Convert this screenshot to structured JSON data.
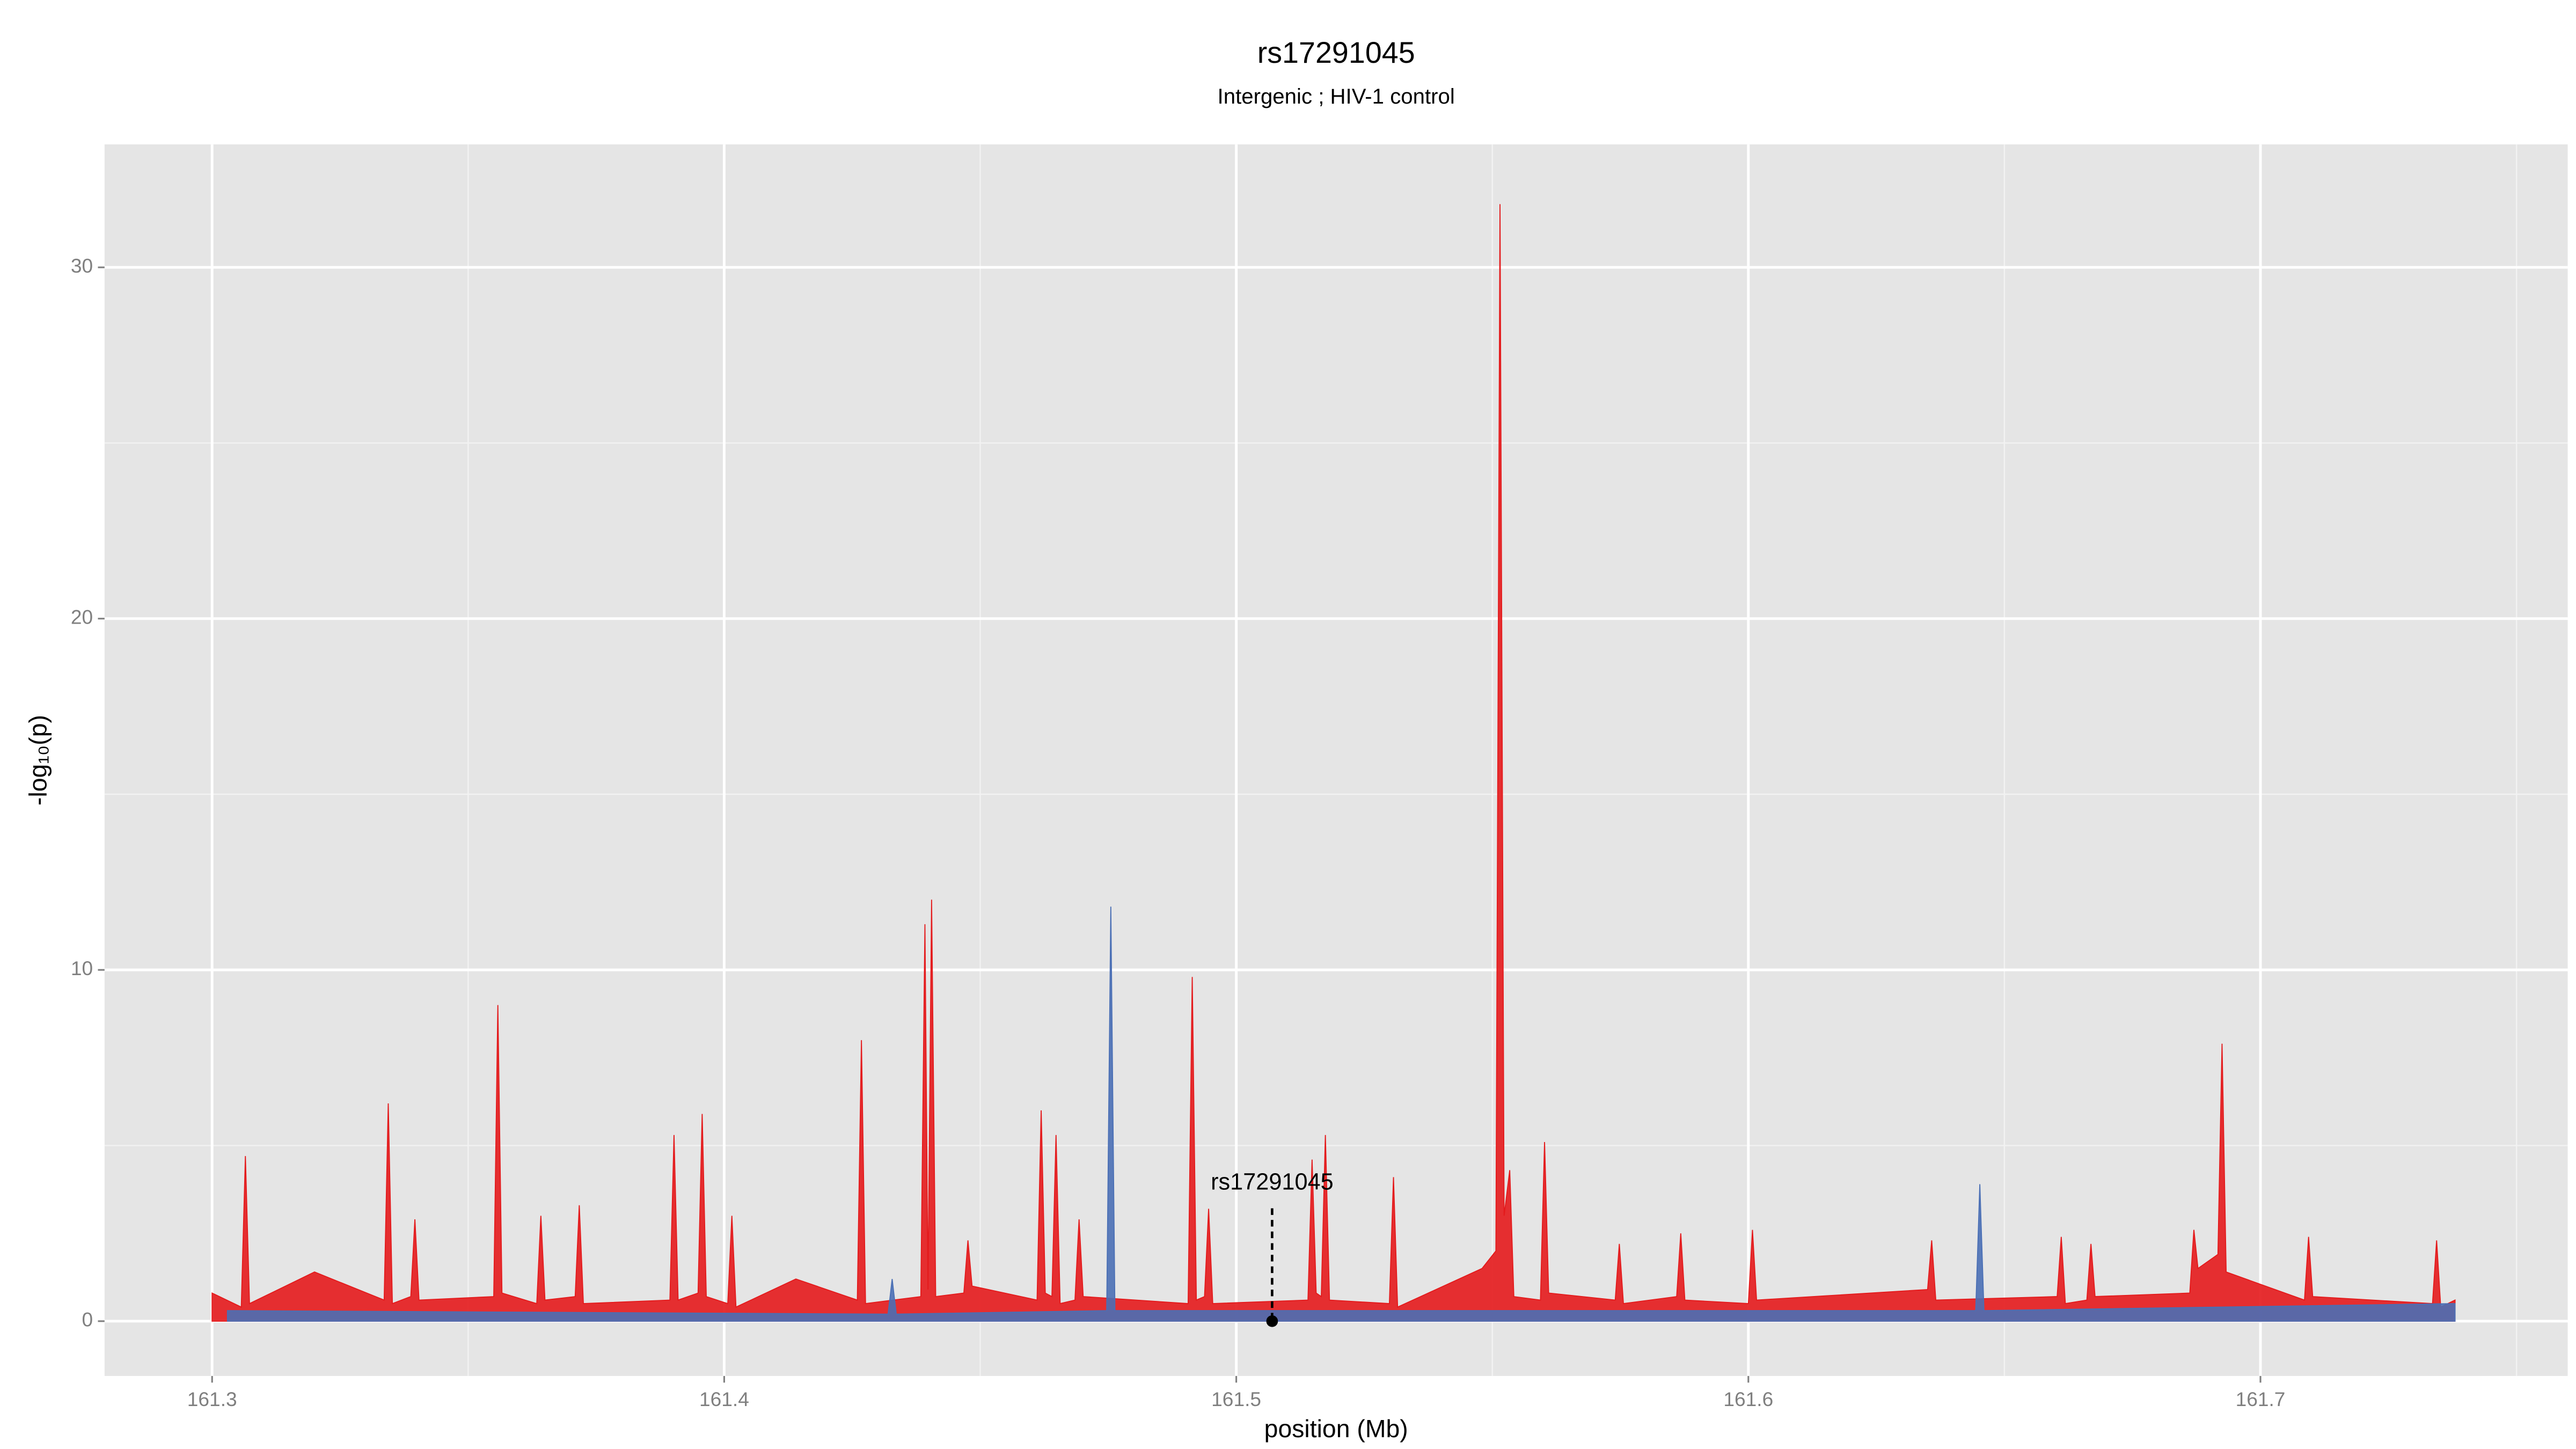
{
  "chart_data": {
    "type": "area",
    "title": "rs17291045",
    "subtitle": "Intergenic ; HIV-1 control",
    "x_label": "position (Mb)",
    "y_label": "-log₁₀(p)",
    "xlim": [
      161.279,
      161.76
    ],
    "ylim": [
      -1.56,
      33.5
    ],
    "xticks": [
      161.3,
      161.4,
      161.5,
      161.6,
      161.7
    ],
    "yticks": [
      0,
      10,
      20,
      30
    ],
    "grid": true,
    "series": [
      {
        "color": "#e41a1c",
        "x": [
          161.3,
          161.3057,
          161.3065,
          161.3073,
          161.32,
          161.3336,
          161.3344,
          161.3352,
          161.3388,
          161.3396,
          161.3404,
          161.355,
          161.3558,
          161.3566,
          161.3634,
          161.3642,
          161.365,
          161.3709,
          161.3717,
          161.3725,
          161.3894,
          161.3902,
          161.391,
          161.3949,
          161.3957,
          161.3965,
          161.4007,
          161.4015,
          161.4023,
          161.414,
          161.426,
          161.4268,
          161.4276,
          161.4384,
          161.4392,
          161.4398,
          161.4405,
          161.4413,
          161.4468,
          161.4476,
          161.4484,
          161.4611,
          161.4619,
          161.4627,
          161.464,
          161.4648,
          161.4656,
          161.4685,
          161.4693,
          161.4701,
          161.4906,
          161.4914,
          161.4922,
          161.4938,
          161.4946,
          161.4954,
          161.514,
          161.5148,
          161.5156,
          161.5166,
          161.5174,
          161.5182,
          161.5299,
          161.5307,
          161.5315,
          161.548,
          161.5507,
          161.5515,
          161.5523,
          161.5534,
          161.5542,
          161.5594,
          161.5602,
          161.561,
          161.574,
          161.5748,
          161.5756,
          161.586,
          161.5868,
          161.5876,
          161.6,
          161.6008,
          161.6016,
          161.635,
          161.6358,
          161.6366,
          161.6603,
          161.6611,
          161.6619,
          161.6661,
          161.6669,
          161.6677,
          161.6862,
          161.687,
          161.6878,
          161.6917,
          161.6925,
          161.6933,
          161.7086,
          161.7094,
          161.7102,
          161.7336,
          161.7344,
          161.7352,
          161.738
        ],
        "values": [
          0.8,
          0.4,
          4.7,
          0.5,
          1.4,
          0.6,
          6.2,
          0.5,
          0.7,
          2.9,
          0.6,
          0.7,
          9.0,
          0.8,
          0.5,
          3.0,
          0.6,
          0.7,
          3.3,
          0.5,
          0.6,
          5.3,
          0.6,
          0.8,
          5.9,
          0.7,
          0.5,
          3.0,
          0.4,
          1.2,
          0.6,
          8.0,
          0.5,
          0.7,
          11.3,
          0.9,
          12.0,
          0.7,
          0.8,
          2.3,
          1.0,
          0.6,
          6.0,
          0.8,
          0.7,
          5.3,
          0.5,
          0.6,
          2.9,
          0.7,
          0.5,
          9.8,
          0.6,
          0.7,
          3.2,
          0.5,
          0.6,
          4.6,
          0.8,
          0.7,
          5.3,
          0.6,
          0.5,
          4.1,
          0.4,
          1.5,
          2.0,
          31.8,
          3.0,
          4.3,
          0.7,
          0.6,
          5.1,
          0.8,
          0.6,
          2.2,
          0.5,
          0.7,
          2.5,
          0.6,
          0.5,
          2.6,
          0.6,
          0.9,
          2.3,
          0.6,
          0.7,
          2.4,
          0.5,
          0.6,
          2.2,
          0.7,
          0.8,
          2.6,
          1.5,
          1.9,
          7.9,
          1.4,
          0.6,
          2.4,
          0.7,
          0.5,
          2.3,
          0.4,
          0.6
        ]
      },
      {
        "color": "#4a6fb5",
        "x": [
          161.303,
          161.432,
          161.4328,
          161.4336,
          161.4747,
          161.4755,
          161.4763,
          161.6444,
          161.6452,
          161.646,
          161.738
        ],
        "values": [
          0.3,
          0.2,
          1.2,
          0.2,
          0.3,
          11.8,
          0.3,
          0.3,
          3.9,
          0.3,
          0.5
        ]
      }
    ],
    "annotations": [
      {
        "text": "rs17291045",
        "x": 161.507,
        "y": 0
      }
    ]
  }
}
